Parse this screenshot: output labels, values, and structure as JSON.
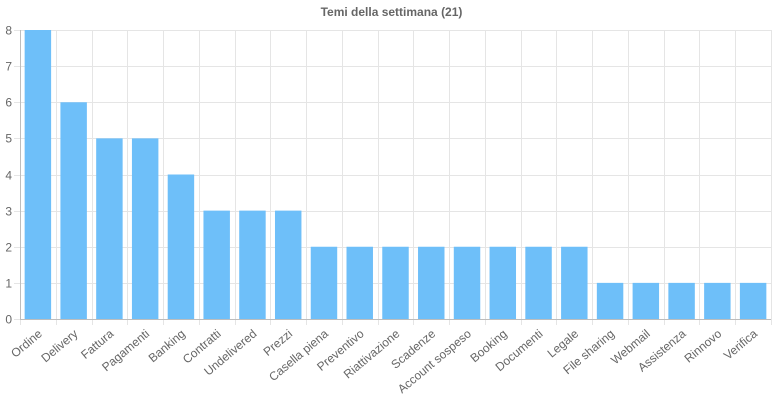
{
  "chart_data": {
    "type": "bar",
    "title": "Temi della settimana (21)",
    "xlabel": "",
    "ylabel": "",
    "categories": [
      "Ordine",
      "Delivery",
      "Fattura",
      "Pagamenti",
      "Banking",
      "Contratti",
      "Undelivered",
      "Prezzi",
      "Casella piena",
      "Preventivo",
      "Riattivazione",
      "Scadenze",
      "Account sospeso",
      "Booking",
      "Documenti",
      "Legale",
      "File sharing",
      "Webmail",
      "Assistenza",
      "Rinnovo",
      "Verifica"
    ],
    "values": [
      8,
      6,
      5,
      5,
      4,
      3,
      3,
      3,
      2,
      2,
      2,
      2,
      2,
      2,
      2,
      2,
      1,
      1,
      1,
      1,
      1
    ],
    "ylim": [
      0,
      8
    ],
    "yticks": [
      "0",
      "1",
      "2",
      "3",
      "4",
      "5",
      "6",
      "7",
      "8"
    ],
    "grid": true,
    "legend": "none",
    "colors": {
      "bar": "#6ebff9",
      "grid": "#e5e5e5",
      "text": "#666666"
    }
  }
}
